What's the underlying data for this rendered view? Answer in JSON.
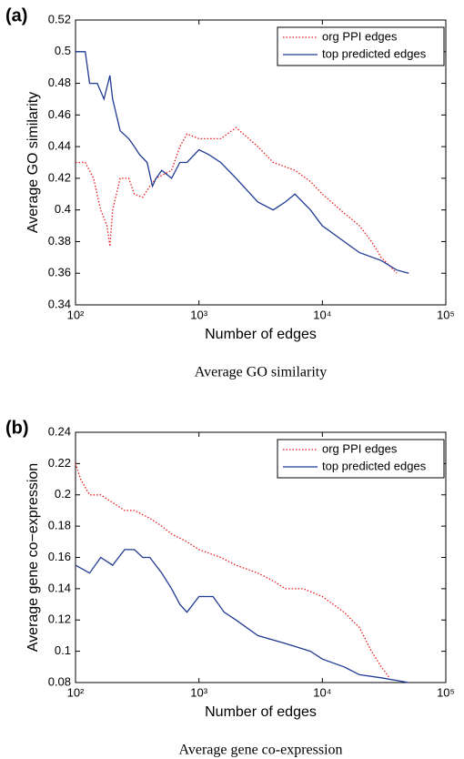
{
  "chart_data": [
    {
      "type": "line",
      "panel_label": "(a)",
      "caption": "Average GO similarity",
      "xlabel": "Number of edges",
      "ylabel": "Average GO similarity",
      "xscale": "log",
      "xlim": [
        100,
        100000
      ],
      "xticks": [
        {
          "value": 100,
          "label": "10²"
        },
        {
          "value": 1000,
          "label": "10³"
        },
        {
          "value": 10000,
          "label": "10⁴"
        },
        {
          "value": 100000,
          "label": "10⁵"
        }
      ],
      "ylim": [
        0.34,
        0.52
      ],
      "yticks": [
        0.34,
        0.36,
        0.38,
        0.4,
        0.42,
        0.44,
        0.46,
        0.48,
        0.5,
        0.52
      ],
      "legend": "upper right",
      "series": [
        {
          "name": "org PPI edges",
          "color": "#e8191c",
          "linestyle": "dotted",
          "x": [
            100,
            120,
            140,
            160,
            180,
            190,
            200,
            230,
            270,
            300,
            350,
            400,
            450,
            600,
            700,
            800,
            1000,
            1500,
            2000,
            3000,
            4000,
            6000,
            8000,
            10000,
            15000,
            20000,
            25000,
            30000,
            40000
          ],
          "values": [
            0.43,
            0.43,
            0.42,
            0.4,
            0.39,
            0.377,
            0.4,
            0.42,
            0.42,
            0.41,
            0.408,
            0.415,
            0.42,
            0.425,
            0.44,
            0.448,
            0.445,
            0.445,
            0.452,
            0.44,
            0.43,
            0.425,
            0.418,
            0.41,
            0.398,
            0.39,
            0.38,
            0.37,
            0.36
          ]
        },
        {
          "name": "top predicted edges",
          "color": "#1f3a93",
          "linestyle": "solid",
          "x": [
            100,
            120,
            130,
            150,
            170,
            190,
            200,
            230,
            270,
            300,
            330,
            380,
            420,
            450,
            500,
            600,
            700,
            800,
            1000,
            1200,
            1500,
            2000,
            3000,
            4000,
            5000,
            6000,
            8000,
            10000,
            15000,
            20000,
            30000,
            40000,
            50000
          ],
          "values": [
            0.5,
            0.5,
            0.48,
            0.48,
            0.47,
            0.485,
            0.47,
            0.45,
            0.445,
            0.44,
            0.435,
            0.43,
            0.415,
            0.42,
            0.425,
            0.42,
            0.43,
            0.43,
            0.438,
            0.435,
            0.43,
            0.42,
            0.405,
            0.4,
            0.405,
            0.41,
            0.4,
            0.39,
            0.38,
            0.373,
            0.368,
            0.362,
            0.36
          ]
        }
      ]
    },
    {
      "type": "line",
      "panel_label": "(b)",
      "caption": "Average gene co-expression",
      "xlabel": "Number of edges",
      "ylabel": "Average gene co−expression",
      "xscale": "log",
      "xlim": [
        100,
        100000
      ],
      "xticks": [
        {
          "value": 100,
          "label": "10²"
        },
        {
          "value": 1000,
          "label": "10³"
        },
        {
          "value": 10000,
          "label": "10⁴"
        },
        {
          "value": 100000,
          "label": "10⁵"
        }
      ],
      "ylim": [
        0.08,
        0.24
      ],
      "yticks": [
        0.08,
        0.1,
        0.12,
        0.14,
        0.16,
        0.18,
        0.2,
        0.22,
        0.24
      ],
      "legend": "upper right",
      "series": [
        {
          "name": "org PPI edges",
          "color": "#e8191c",
          "linestyle": "dotted",
          "x": [
            100,
            110,
            130,
            160,
            200,
            250,
            300,
            400,
            500,
            600,
            800,
            1000,
            1500,
            2000,
            3000,
            4000,
            5000,
            7000,
            10000,
            15000,
            20000,
            25000,
            30000,
            35000
          ],
          "values": [
            0.22,
            0.21,
            0.2,
            0.2,
            0.195,
            0.19,
            0.19,
            0.185,
            0.18,
            0.175,
            0.17,
            0.165,
            0.16,
            0.155,
            0.15,
            0.145,
            0.14,
            0.14,
            0.135,
            0.125,
            0.115,
            0.1,
            0.09,
            0.083
          ]
        },
        {
          "name": "top predicted edges",
          "color": "#1f3a93",
          "linestyle": "solid",
          "x": [
            100,
            130,
            160,
            200,
            250,
            300,
            350,
            400,
            500,
            600,
            700,
            800,
            1000,
            1300,
            1600,
            2000,
            3000,
            5000,
            8000,
            10000,
            15000,
            20000,
            30000,
            50000
          ],
          "values": [
            0.155,
            0.15,
            0.16,
            0.155,
            0.165,
            0.165,
            0.16,
            0.16,
            0.15,
            0.14,
            0.13,
            0.125,
            0.135,
            0.135,
            0.125,
            0.12,
            0.11,
            0.105,
            0.1,
            0.095,
            0.09,
            0.085,
            0.083,
            0.08
          ]
        }
      ]
    }
  ]
}
